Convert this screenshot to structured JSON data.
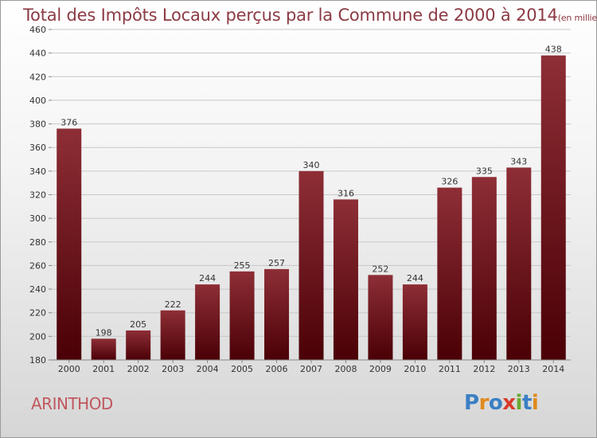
{
  "title": "Total des Impôts Locaux perçus par la Commune de 2000 à 2014",
  "title_unit": "(en milliers d'€)",
  "commune": "ARINTHOD",
  "logo": {
    "text": "Proxiti",
    "letters": [
      {
        "char": "P",
        "color": "#3a7fc4"
      },
      {
        "char": "r",
        "color": "#e08a1c"
      },
      {
        "char": "o",
        "color": "#3a7fc4"
      },
      {
        "char": "x",
        "color": "#d93a2b"
      },
      {
        "char": "i",
        "color": "#6aa832"
      },
      {
        "char": "t",
        "color": "#3a7fc4"
      },
      {
        "char": "i",
        "color": "#e08a1c"
      }
    ]
  },
  "colors": {
    "bar_top": "#8e2e36",
    "bar_bottom": "#4a0006",
    "title": "#8c3a44",
    "commune": "#c0585f"
  },
  "chart_data": {
    "type": "bar",
    "categories": [
      "2000",
      "2001",
      "2002",
      "2003",
      "2004",
      "2005",
      "2006",
      "2007",
      "2008",
      "2009",
      "2010",
      "2011",
      "2012",
      "2013",
      "2014"
    ],
    "values": [
      376,
      198,
      205,
      222,
      244,
      255,
      257,
      340,
      316,
      252,
      244,
      326,
      335,
      343,
      438
    ],
    "ylim": [
      180,
      460
    ],
    "yticks": [
      180,
      200,
      220,
      240,
      260,
      280,
      300,
      320,
      340,
      360,
      380,
      400,
      420,
      440,
      460
    ],
    "grid": true,
    "legend": "none"
  }
}
